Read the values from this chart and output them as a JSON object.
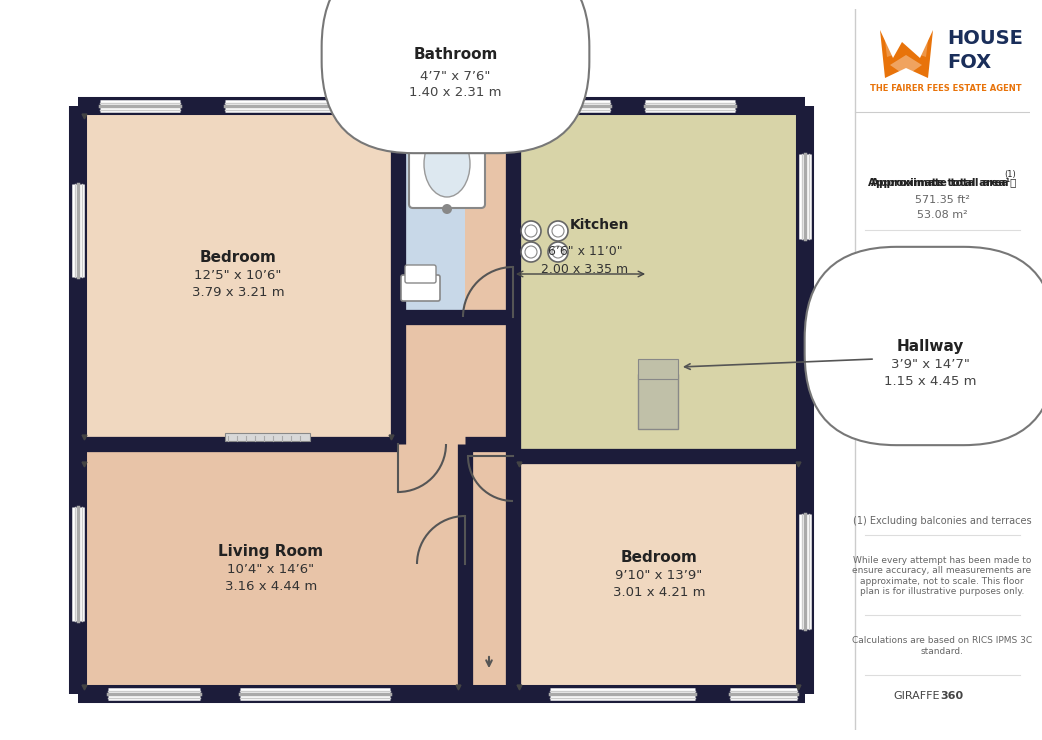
{
  "bg": "#ffffff",
  "wall": "#1c1c3a",
  "peach": "#f0d8c0",
  "salmon": "#e8c4a8",
  "blue_grey": "#c8d8e8",
  "khaki": "#d8d4a8",
  "orange": "#e8730a",
  "navy": "#1a2e5a",
  "rooms": {
    "bedroom1": {
      "label": "Bedroom",
      "line1": "12’5\" x 10’6\"",
      "line2": "3.79 x 3.21 m"
    },
    "bedroom2": {
      "label": "Bedroom",
      "line1": "9’10\" x 13’9\"",
      "line2": "3.01 x 4.21 m"
    },
    "living": {
      "label": "Living Room",
      "line1": "10’4\" x 14’6\"",
      "line2": "3.16 x 4.44 m"
    },
    "kitchen": {
      "label": "Kitchen",
      "line1": "6’6\" x 11’0\"",
      "line2": "2.00 x 3.35 m"
    },
    "hallway": {
      "label": "Hallway",
      "line1": "3’9\" x 14’7\"",
      "line2": "1.15 x 4.45 m"
    },
    "bathroom": {
      "label": "Bathroom",
      "line1": "4’7\" x 7’6\"",
      "line2": "1.40 x 2.31 m"
    }
  },
  "area_label": "Approximate total area",
  "area_ft2": "571.35 ft²",
  "area_m2": "53.08 m²",
  "note1": "(1) Excluding balconies and terraces",
  "note2": "While every attempt has been made to\nensure accuracy, all measurements are\napproximate, not to scale. This floor\nplan is for illustrative purposes only.",
  "note3": "Calculations are based on RICS IPMS 3C\nstandard.",
  "giraffe_plain": "GIRAFFE",
  "giraffe_bold": "360"
}
